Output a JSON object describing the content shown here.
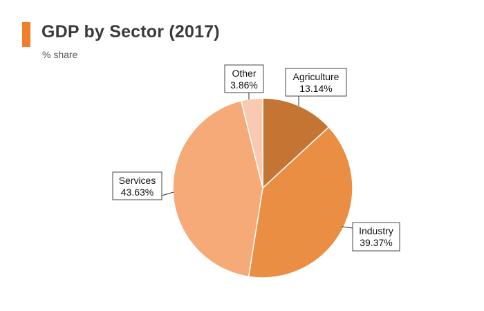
{
  "header": {
    "title": "GDP by Sector (2017)",
    "subtitle": "% share",
    "accent_color": "#F07F2A"
  },
  "chart_data": {
    "type": "pie",
    "title": "GDP by Sector (2017)",
    "subtitle": "% share",
    "start_angle_deg": 0,
    "direction": "clockwise",
    "slices": [
      {
        "label": "Agriculture",
        "value": 13.14,
        "display": "13.14%",
        "color": "#C47433"
      },
      {
        "label": "Industry",
        "value": 39.37,
        "display": "39.37%",
        "color": "#E98E43"
      },
      {
        "label": "Services",
        "value": 43.63,
        "display": "43.63%",
        "color": "#F5AA78"
      },
      {
        "label": "Other",
        "value": 3.86,
        "display": "3.86%",
        "color": "#F9C9B2"
      }
    ]
  }
}
